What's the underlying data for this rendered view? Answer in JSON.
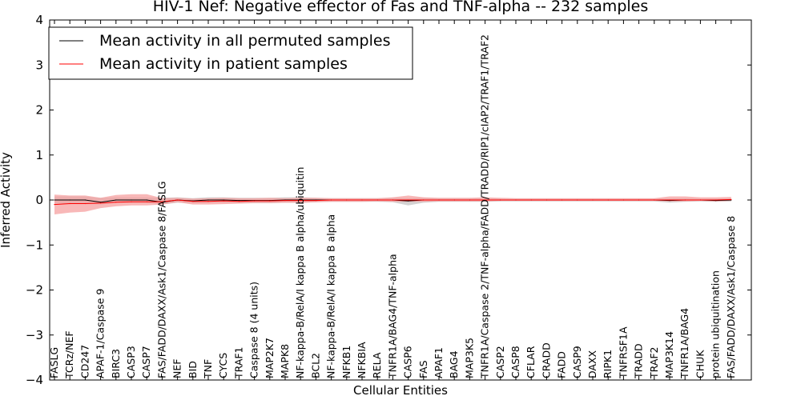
{
  "chart_data": {
    "type": "line",
    "title": "HIV-1 Nef: Negative effector of Fas and TNF-alpha -- 232 samples",
    "xlabel": "Cellular Entities",
    "ylabel": "Inferred Activity",
    "ylim": [
      -4,
      4
    ],
    "yticks": [
      4,
      3,
      2,
      1,
      0,
      -1,
      -2,
      -3,
      -4
    ],
    "ytick_labels": [
      "4",
      "3",
      "2",
      "1",
      "0",
      "−1",
      "−2",
      "−3",
      "−4"
    ],
    "legend_position": "top-left",
    "categories": [
      "FASLG",
      "TCRz/NEF",
      "CD247",
      "APAF-1/Caspase 9",
      "BIRC3",
      "CASP3",
      "CASP7",
      "FAS/FADD/DAXX/Ask1/Caspase 8/FASLG",
      "NEF",
      "BID",
      "TNF",
      "CYCS",
      "TRAF1",
      "Caspase 8 (4 units)",
      "MAP2K7",
      "MAPK8",
      "NF-kappa-B/RelA/I kappa B alpha/ubiquitin",
      "BCL2",
      "NF-kappa-B/RelA/I kappa B alpha",
      "NFKB1",
      "NFKBIA",
      "RELA",
      "TNFR1A/BAG4/TNF-alpha",
      "CASP6",
      "FAS",
      "APAF1",
      "BAG4",
      "MAP3K5",
      "TNFR1A/Caspase 2/TNF-alpha/FADD/TRADD/RIP1/cIAP2/TRAF1/TRAF2",
      "CASP2",
      "CASP8",
      "CFLAR",
      "CRADD",
      "FADD",
      "CASP9",
      "DAXX",
      "RIPK1",
      "TNFRSF1A",
      "TRADD",
      "TRAF2",
      "MAP3K14",
      "TNFR1A/BAG4",
      "CHUK",
      "protein ubiquitination",
      "FAS/FADD/DAXX/Ask1/Caspase 8"
    ],
    "series": [
      {
        "name": "Mean activity in all permuted samples",
        "color": "#000000",
        "band_color": "#c8c8c8",
        "values": [
          0,
          0,
          0,
          -0.05,
          0,
          0,
          0,
          -0.05,
          0,
          -0.02,
          0,
          0,
          -0.01,
          -0.01,
          -0.01,
          0,
          0,
          0,
          0,
          0,
          0,
          0,
          0,
          -0.02,
          0,
          0,
          0,
          0,
          0,
          0,
          0,
          0,
          0,
          0,
          0,
          0,
          0,
          0,
          0,
          0,
          -0.01,
          0,
          0,
          -0.01,
          0
        ],
        "lower": [
          -0.08,
          -0.08,
          -0.08,
          -0.1,
          -0.06,
          -0.06,
          -0.06,
          -0.1,
          -0.06,
          -0.07,
          -0.06,
          -0.06,
          -0.07,
          -0.07,
          -0.07,
          -0.06,
          -0.06,
          -0.05,
          -0.04,
          -0.04,
          -0.04,
          -0.04,
          -0.05,
          -0.12,
          -0.06,
          -0.04,
          -0.04,
          -0.04,
          -0.04,
          -0.03,
          -0.03,
          -0.03,
          -0.03,
          -0.03,
          -0.03,
          -0.03,
          -0.03,
          -0.03,
          -0.03,
          -0.03,
          -0.06,
          -0.04,
          -0.03,
          -0.04,
          -0.03
        ],
        "upper": [
          0.08,
          0.08,
          0.08,
          0.05,
          0.06,
          0.06,
          0.06,
          0.05,
          0.06,
          0.04,
          0.06,
          0.06,
          0.05,
          0.05,
          0.05,
          0.06,
          0.06,
          0.05,
          0.04,
          0.04,
          0.04,
          0.04,
          0.05,
          0.04,
          0.05,
          0.04,
          0.04,
          0.04,
          0.04,
          0.03,
          0.03,
          0.03,
          0.03,
          0.03,
          0.03,
          0.03,
          0.03,
          0.03,
          0.03,
          0.03,
          0.03,
          0.04,
          0.03,
          0.03,
          0.03
        ]
      },
      {
        "name": "Mean activity in patient samples",
        "color": "#ff0000",
        "band_color": "#f5a0a0",
        "values": [
          -0.1,
          -0.08,
          -0.08,
          -0.07,
          -0.05,
          -0.04,
          -0.04,
          -0.04,
          0,
          -0.03,
          -0.03,
          -0.02,
          -0.03,
          -0.02,
          -0.02,
          -0.01,
          -0.01,
          -0.01,
          0,
          0,
          0,
          0,
          0,
          0,
          0,
          0,
          0,
          0,
          0,
          0,
          0,
          0,
          0,
          0,
          0,
          0,
          0,
          0,
          0,
          0,
          0,
          0,
          0,
          0,
          0.01
        ],
        "lower": [
          -0.32,
          -0.28,
          -0.26,
          -0.18,
          -0.14,
          -0.12,
          -0.12,
          -0.1,
          -0.05,
          -0.1,
          -0.1,
          -0.09,
          -0.08,
          -0.07,
          -0.07,
          -0.06,
          -0.06,
          -0.05,
          -0.04,
          -0.04,
          -0.04,
          -0.03,
          -0.04,
          -0.04,
          -0.04,
          -0.03,
          -0.03,
          -0.03,
          -0.03,
          -0.02,
          -0.02,
          -0.02,
          -0.02,
          -0.02,
          -0.02,
          -0.02,
          -0.02,
          -0.02,
          -0.02,
          -0.02,
          -0.03,
          -0.03,
          -0.02,
          -0.03,
          -0.02
        ],
        "upper": [
          0.12,
          0.1,
          0.1,
          0.05,
          0.11,
          0.13,
          0.13,
          0.04,
          0.05,
          0.03,
          0.04,
          0.05,
          0.04,
          0.04,
          0.05,
          0.04,
          0.05,
          0.05,
          0.04,
          0.04,
          0.04,
          0.04,
          0.06,
          0.1,
          0.06,
          0.05,
          0.05,
          0.05,
          0.06,
          0.05,
          0.04,
          0.04,
          0.04,
          0.04,
          0.04,
          0.04,
          0.04,
          0.04,
          0.04,
          0.04,
          0.08,
          0.08,
          0.06,
          0.06,
          0.07
        ]
      }
    ]
  }
}
